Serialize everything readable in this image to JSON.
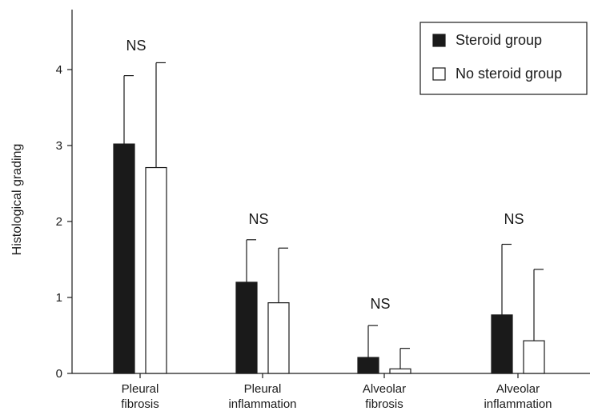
{
  "chart_data": {
    "type": "bar",
    "title": "",
    "xlabel": "",
    "ylabel": "Histological grading",
    "ylim": [
      0,
      5
    ],
    "yticks": [
      0,
      1,
      2,
      3,
      4
    ],
    "grid": false,
    "legend_position": "top-right",
    "categories": [
      [
        "Pleural",
        "fibrosis"
      ],
      [
        "Pleural",
        "inflammation"
      ],
      [
        "Alveolar",
        "fibrosis"
      ],
      [
        "Alveolar",
        "inflammation"
      ]
    ],
    "series": [
      {
        "name": "Steroid group",
        "color": "#1a1a1a",
        "values": [
          3.02,
          1.2,
          0.21,
          0.77
        ],
        "error_upper": [
          0.9,
          0.56,
          0.42,
          0.93
        ]
      },
      {
        "name": "No steroid group",
        "color": "#ffffff",
        "values": [
          2.71,
          0.93,
          0.06,
          0.43
        ],
        "error_upper": [
          1.38,
          0.72,
          0.27,
          0.94
        ]
      }
    ],
    "annotations": [
      "NS",
      "NS",
      "NS",
      "NS"
    ]
  }
}
